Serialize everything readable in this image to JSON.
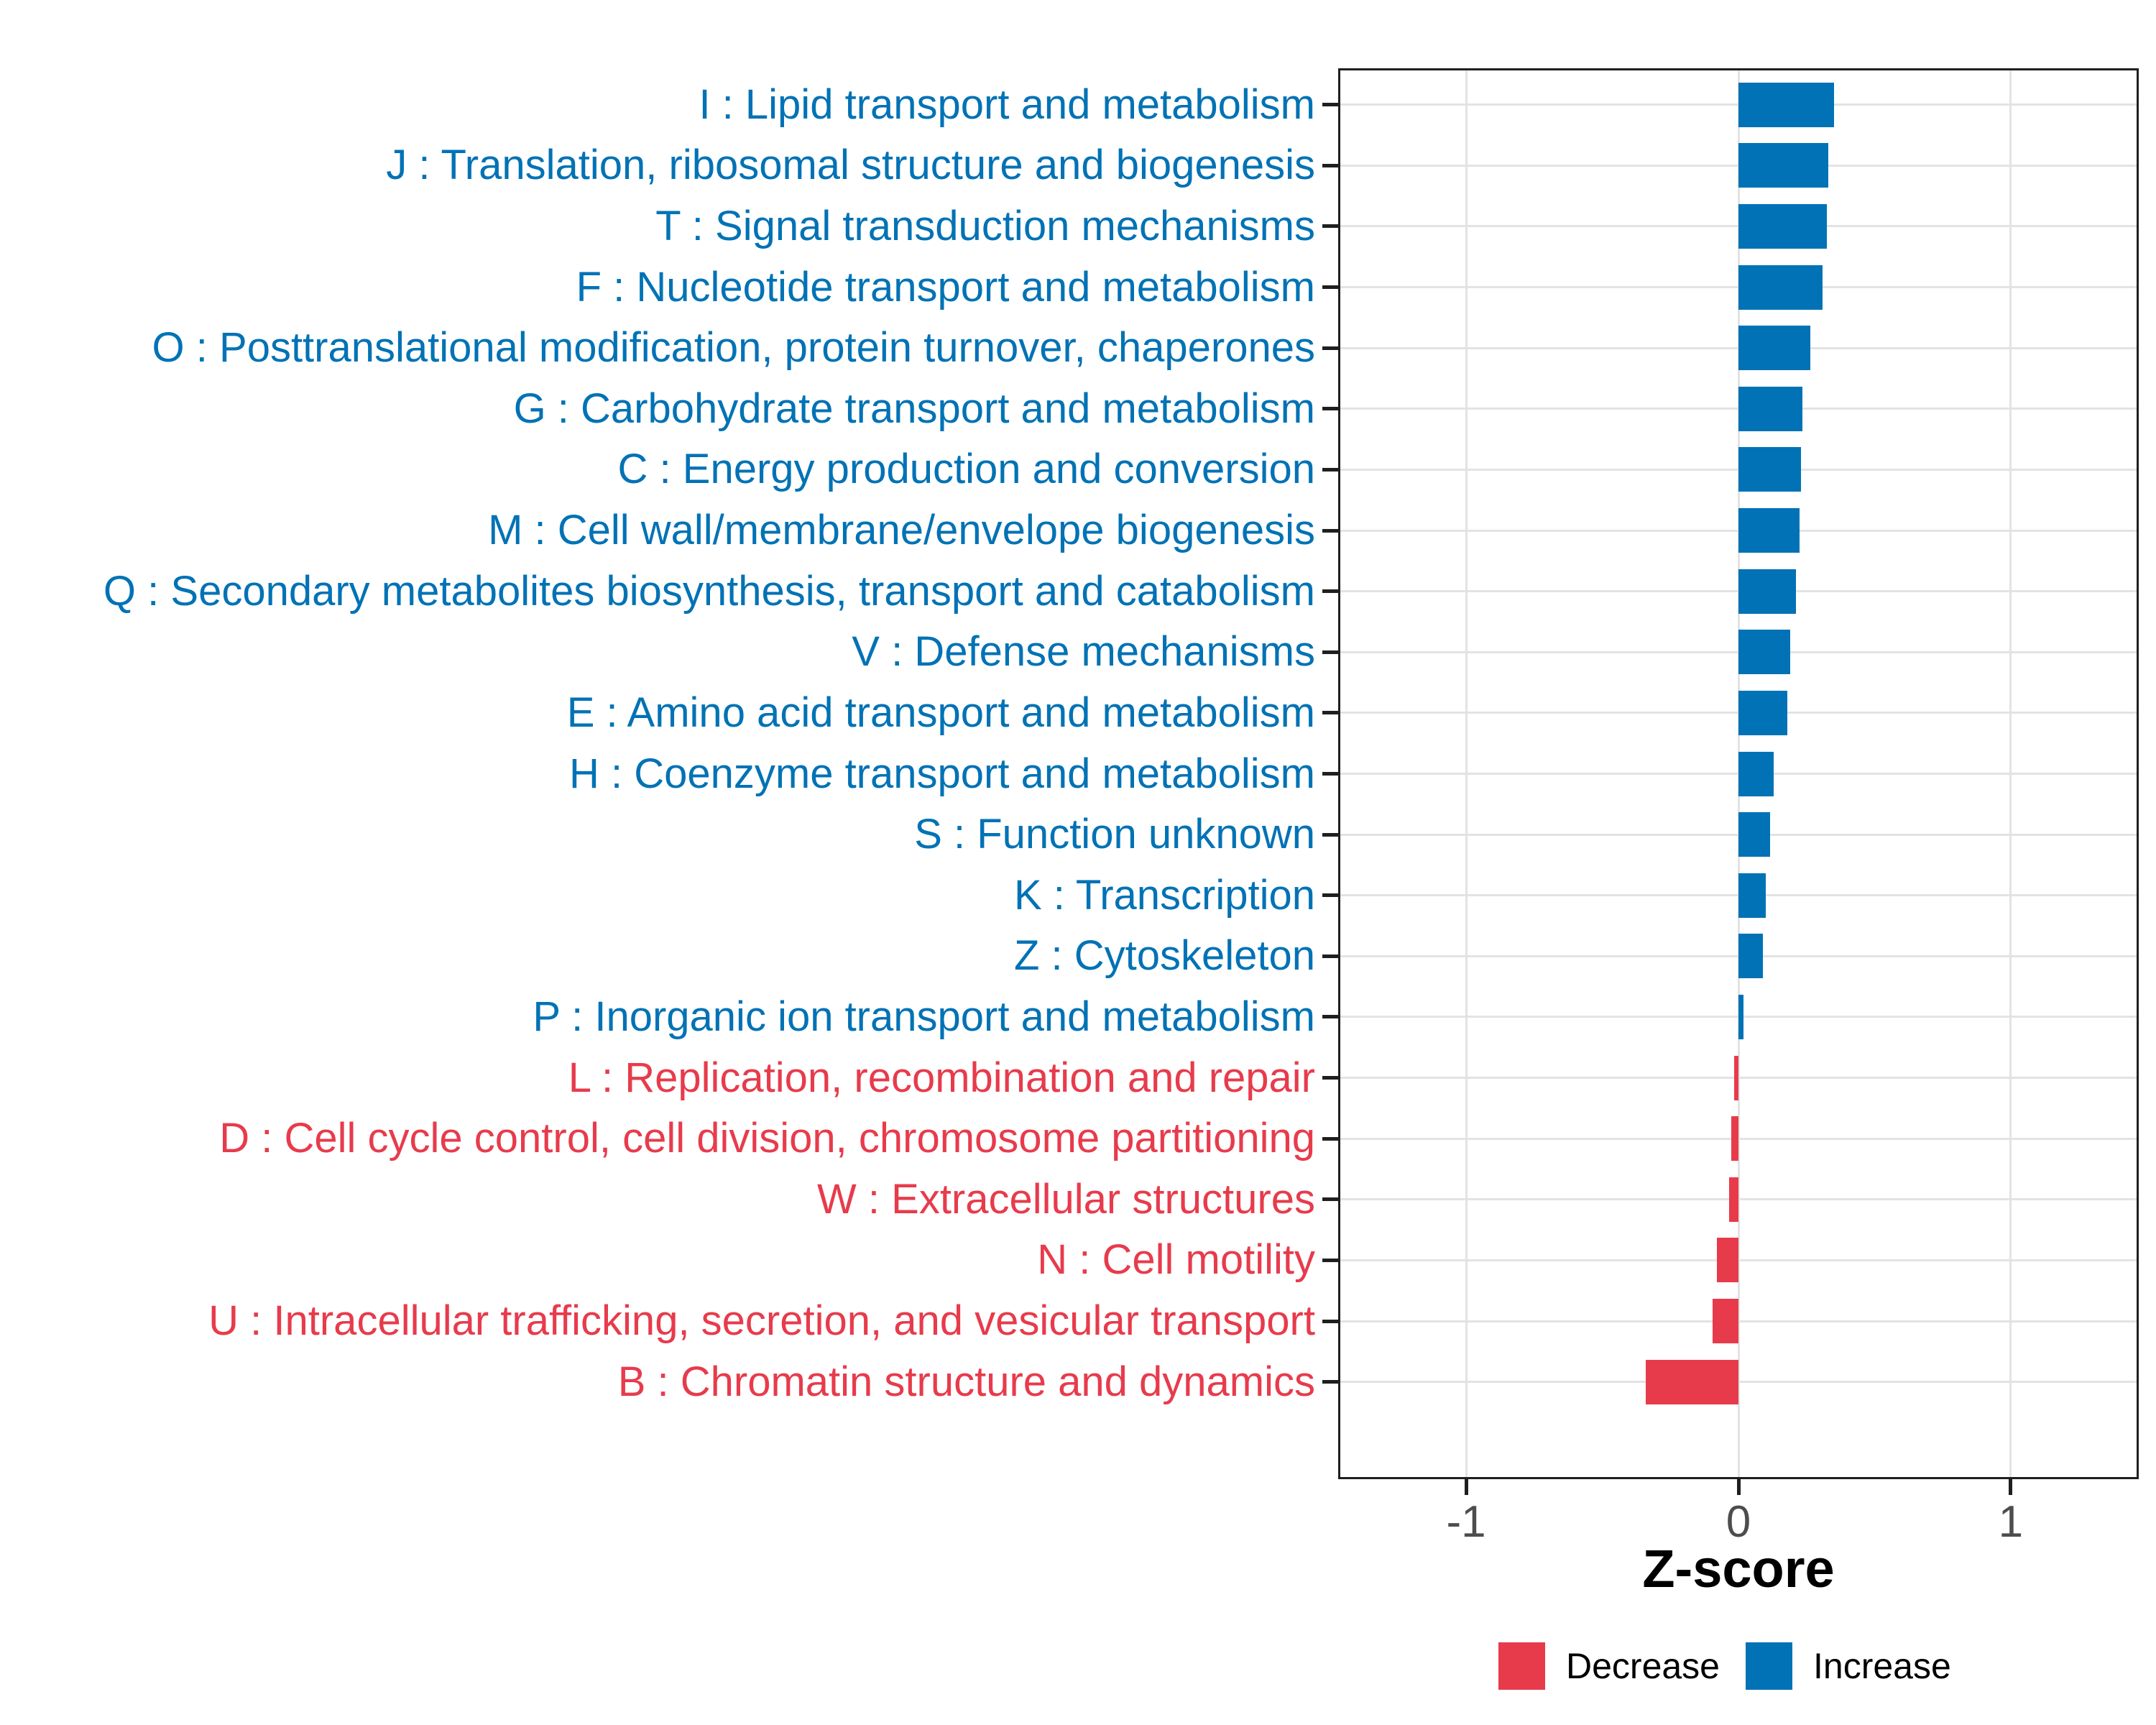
{
  "chart_data": {
    "type": "bar",
    "orientation": "horizontal",
    "title": "",
    "xlabel": "Z-score",
    "ylabel": "",
    "x_ticks": [
      -1,
      0,
      1
    ],
    "xlim": [
      -1.47,
      1.47
    ],
    "grid": "major-x-and-y-only",
    "legend": {
      "position": "bottom-right",
      "entries": [
        {
          "label": "Decrease",
          "color": "#e73b4c"
        },
        {
          "label": "Increase",
          "color": "#0072b5"
        }
      ]
    },
    "bars": [
      {
        "label": "I : Lipid transport and metabolism",
        "value": 0.35,
        "group": "Increase"
      },
      {
        "label": "J : Translation, ribosomal structure and biogenesis",
        "value": 0.33,
        "group": "Increase"
      },
      {
        "label": "T : Signal transduction mechanisms",
        "value": 0.325,
        "group": "Increase"
      },
      {
        "label": "F : Nucleotide transport and metabolism",
        "value": 0.31,
        "group": "Increase"
      },
      {
        "label": "O : Posttranslational modification, protein turnover, chaperones",
        "value": 0.265,
        "group": "Increase"
      },
      {
        "label": "G : Carbohydrate transport and metabolism",
        "value": 0.235,
        "group": "Increase"
      },
      {
        "label": "C : Energy production and conversion",
        "value": 0.23,
        "group": "Increase"
      },
      {
        "label": "M : Cell wall/membrane/envelope biogenesis",
        "value": 0.225,
        "group": "Increase"
      },
      {
        "label": "Q : Secondary metabolites biosynthesis, transport and catabolism",
        "value": 0.21,
        "group": "Increase"
      },
      {
        "label": "V : Defense mechanisms",
        "value": 0.19,
        "group": "Increase"
      },
      {
        "label": "E : Amino acid transport and metabolism",
        "value": 0.18,
        "group": "Increase"
      },
      {
        "label": "H : Coenzyme transport and metabolism",
        "value": 0.13,
        "group": "Increase"
      },
      {
        "label": "S : Function unknown",
        "value": 0.115,
        "group": "Increase"
      },
      {
        "label": "K : Transcription",
        "value": 0.1,
        "group": "Increase"
      },
      {
        "label": "Z : Cytoskeleton",
        "value": 0.09,
        "group": "Increase"
      },
      {
        "label": "P : Inorganic ion transport and metabolism",
        "value": 0.018,
        "group": "Increase"
      },
      {
        "label": "L : Replication, recombination and repair",
        "value": -0.016,
        "group": "Decrease"
      },
      {
        "label": "D : Cell cycle control, cell division, chromosome partitioning",
        "value": -0.027,
        "group": "Decrease"
      },
      {
        "label": "W : Extracellular structures",
        "value": -0.035,
        "group": "Decrease"
      },
      {
        "label": "N : Cell motility",
        "value": -0.08,
        "group": "Decrease"
      },
      {
        "label": "U : Intracellular trafficking, secretion, and vesicular transport",
        "value": -0.095,
        "group": "Decrease"
      },
      {
        "label": "B : Chromatin structure and dynamics",
        "value": -0.34,
        "group": "Decrease"
      }
    ],
    "colors": {
      "increase": "#0072b5",
      "decrease": "#e73b4c",
      "grid": "#e3e3e3",
      "panel_border": "#1f1f1f",
      "axis_tick_text": "#4d4d4d"
    }
  }
}
